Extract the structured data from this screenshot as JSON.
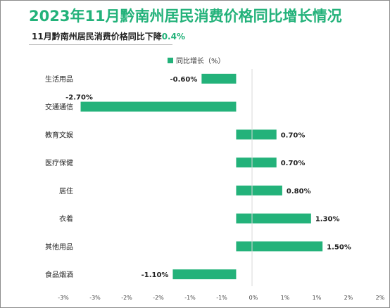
{
  "title": "2023年11月黔南州居民消费价格同比增长情况",
  "subtitle": {
    "text": "11月黔南州居民消费价格同比下降",
    "highlight": "0.4%"
  },
  "colors": {
    "accent": "#23b27a",
    "bar": "#23b27a"
  },
  "chart_data": {
    "type": "bar",
    "orientation": "horizontal",
    "categories": [
      "生活用品",
      "交通通信",
      "教育文娱",
      "医疗保健",
      "居住",
      "衣着",
      "其他用品",
      "食品烟酒"
    ],
    "series": [
      {
        "name": "同比增长（%）",
        "values": [
          -0.6,
          -2.7,
          0.7,
          0.7,
          0.8,
          1.3,
          1.5,
          -1.1
        ]
      }
    ],
    "data_labels": [
      "-0.60%",
      "-2.70%",
      "0.70%",
      "0.70%",
      "0.80%",
      "1.30%",
      "1.50%",
      "-1.10%"
    ],
    "x_ticks": [
      "-3%",
      "-3%",
      "-2%",
      "-2%",
      "-1%",
      "-1%",
      "0%",
      "1%",
      "1%",
      "2%",
      "2%"
    ],
    "xlim": [
      -3,
      2.5
    ],
    "legend": "top",
    "grid": false
  }
}
